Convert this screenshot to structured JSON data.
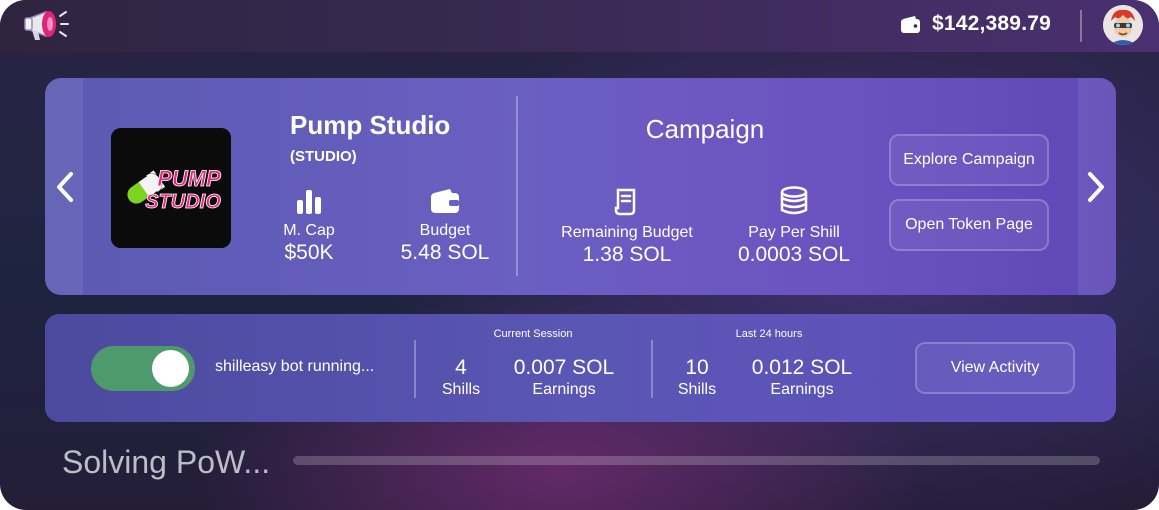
{
  "topbar": {
    "balance": "$142,389.79",
    "logo_icon": "megaphone-icon",
    "wallet_icon": "wallet-icon"
  },
  "token": {
    "name": "Pump Studio",
    "type": "(STUDIO)",
    "logo_text": [
      "PUMP",
      "STUDIO"
    ],
    "stats": [
      {
        "icon": "bar-chart-icon",
        "label": "M. Cap",
        "value": "$50K"
      },
      {
        "icon": "wallet-icon",
        "label": "Budget",
        "value": "5.48 SOL"
      }
    ]
  },
  "campaign": {
    "title": "Campaign",
    "stats": [
      {
        "icon": "receipt-icon",
        "label": "Remaining Budget",
        "value": "1.38 SOL"
      },
      {
        "icon": "coins-icon",
        "label": "Pay Per Shill",
        "value": "0.0003 SOL"
      }
    ],
    "buttons": {
      "explore": "Explore Campaign",
      "open_token": "Open Token Page"
    }
  },
  "bot": {
    "running": true,
    "status": "shilleasy bot running...",
    "current_session": {
      "label": "Current Session",
      "shills_value": "4",
      "shills_label": "Shills",
      "earnings_value": "0.007 SOL",
      "earnings_label": "Earnings"
    },
    "last_24h": {
      "label": "Last 24 hours",
      "shills_value": "10",
      "shills_label": "Shills",
      "earnings_value": "0.012 SOL",
      "earnings_label": "Earnings"
    },
    "view_activity": "View Activity"
  },
  "progress": {
    "label": "Solving PoW...",
    "fraction": 0.0
  },
  "colors": {
    "toggle_on": "#4f9a6c",
    "card": "#6b5fc2",
    "logo_pink": "#e8237e"
  }
}
